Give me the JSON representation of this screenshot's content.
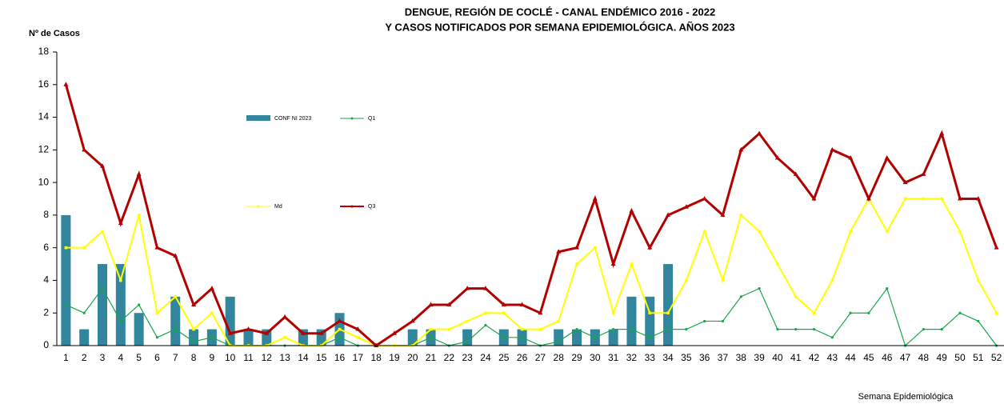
{
  "chart_data": {
    "type": "bar-line",
    "title": [
      "DENGUE, REGIÓN DE COCLÉ - CANAL ENDÉMICO 2016 - 2022",
      "Y CASOS NOTIFICADOS POR SEMANA EPIDEMIOLÓGICA. AÑOS 2023"
    ],
    "y_label": "Nº de Casos",
    "x_label": "Semana Epidemiológica",
    "categories": [
      "1",
      "2",
      "3",
      "4",
      "5",
      "6",
      "7",
      "8",
      "9",
      "10",
      "11",
      "12",
      "13",
      "14",
      "15",
      "16",
      "17",
      "18",
      "19",
      "20",
      "21",
      "22",
      "23",
      "24",
      "25",
      "26",
      "27",
      "28",
      "29",
      "30",
      "31",
      "32",
      "33",
      "34",
      "35",
      "36",
      "37",
      "38",
      "39",
      "40",
      "41",
      "42",
      "43",
      "44",
      "45",
      "46",
      "47",
      "48",
      "49",
      "50",
      "51",
      "52"
    ],
    "ylim": [
      0,
      18
    ],
    "yticks": [
      0,
      2,
      4,
      6,
      8,
      10,
      12,
      14,
      16,
      18
    ],
    "series": [
      {
        "name": "CONF NI 2023",
        "kind": "bar",
        "color": "#31859c",
        "values": [
          8,
          1,
          5,
          5,
          2,
          0,
          3,
          1,
          1,
          3,
          1,
          1,
          0,
          1,
          1,
          2,
          0,
          0,
          0,
          1,
          1,
          0,
          1,
          0,
          1,
          1,
          0,
          1,
          1,
          1,
          1,
          3,
          3,
          5,
          null,
          null,
          null,
          null,
          null,
          null,
          null,
          null,
          null,
          null,
          null,
          null,
          null,
          null,
          null,
          null,
          null,
          null
        ]
      },
      {
        "name": "Q1",
        "kind": "line",
        "color": "#1aa64a",
        "marker": "circle",
        "values": [
          2.5,
          2,
          3.5,
          1.5,
          2.5,
          0.5,
          1,
          0.25,
          0.5,
          0,
          0,
          0,
          0,
          0,
          0,
          0.5,
          0,
          0,
          0,
          0,
          0.5,
          0,
          0.25,
          1.25,
          0.5,
          0.5,
          0,
          0.25,
          1,
          0.5,
          1,
          1,
          0.5,
          1,
          1,
          1.5,
          1.5,
          3,
          3.5,
          1,
          1,
          1,
          0.5,
          2,
          2,
          3.5,
          0,
          1,
          1,
          2,
          1.5,
          0
        ]
      },
      {
        "name": "Md",
        "kind": "line",
        "color": "#ffff00",
        "marker": "square",
        "values": [
          6,
          6,
          7,
          4,
          8,
          2,
          3,
          1,
          2,
          0,
          0,
          0,
          0.5,
          0,
          0,
          1,
          0.5,
          0,
          0,
          0,
          1,
          1,
          1.5,
          2,
          2,
          1,
          1,
          1.5,
          5,
          6,
          2,
          5,
          2,
          2,
          4,
          7,
          4,
          8,
          7,
          5,
          3,
          2,
          4,
          7,
          9,
          7,
          9,
          9,
          9,
          7,
          4,
          2
        ]
      },
      {
        "name": "Q3",
        "kind": "line",
        "color": "#b30000",
        "marker": "triangle",
        "values": [
          16,
          12,
          11,
          7.5,
          10.5,
          6,
          5.5,
          2.5,
          3.5,
          0.75,
          1,
          0.75,
          1.75,
          0.75,
          0.75,
          1.5,
          1,
          0,
          0.75,
          1.5,
          2.5,
          2.5,
          3.5,
          3.5,
          2.5,
          2.5,
          2,
          5.75,
          6,
          9,
          5,
          8.25,
          6,
          8,
          8.5,
          9,
          8,
          12,
          13,
          11.5,
          10.5,
          9,
          12,
          11.5,
          9,
          11.5,
          10,
          10.5,
          13,
          9,
          9,
          6
        ]
      }
    ]
  }
}
